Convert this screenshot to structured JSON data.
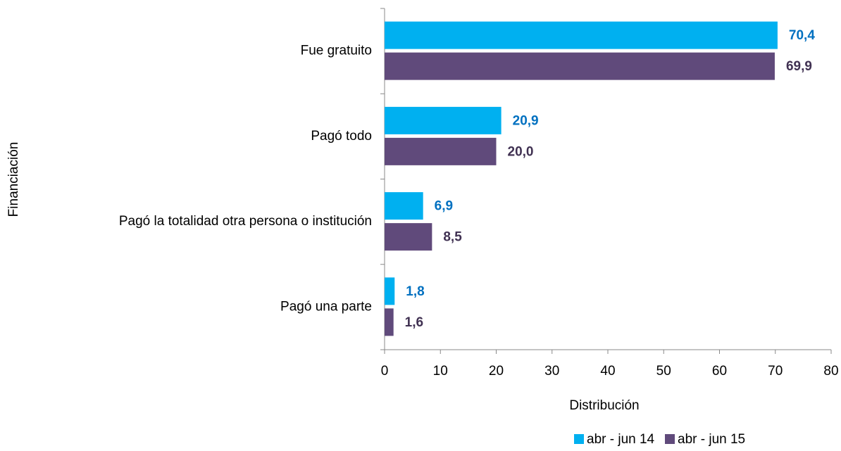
{
  "chart_data": {
    "type": "bar",
    "orientation": "horizontal",
    "x_label": "Distribución",
    "y_label": "Financiación",
    "categories": [
      "Fue gratuito",
      "Pagó todo",
      "Pagó la totalidad otra persona o institución",
      "Pagó una parte"
    ],
    "series": [
      {
        "name": "abr - jun 14",
        "color": "#00b0f0",
        "label_color": "#0070c0",
        "values": [
          70.4,
          20.9,
          6.9,
          1.8
        ],
        "value_labels": [
          "70,4",
          "20,9",
          "6,9",
          "1,8"
        ]
      },
      {
        "name": "abr - jun 15",
        "color": "#604a7b",
        "label_color": "#403152",
        "values": [
          69.9,
          20.0,
          8.5,
          1.6
        ],
        "value_labels": [
          "69,9",
          "20,0",
          "8,5",
          "1,6"
        ]
      }
    ],
    "xlim": [
      0,
      80
    ],
    "xticks": [
      0,
      10,
      20,
      30,
      40,
      50,
      60,
      70,
      80
    ],
    "grid": false,
    "legend": "bottom"
  }
}
